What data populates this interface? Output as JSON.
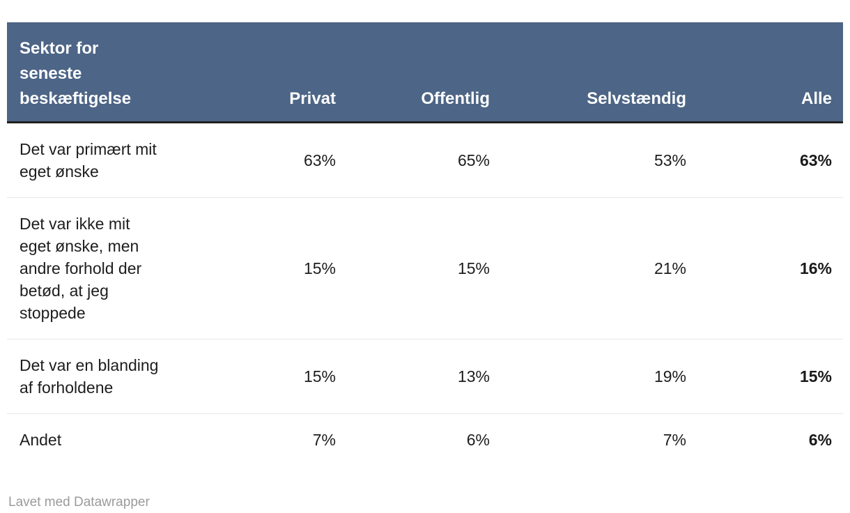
{
  "chart_data": {
    "type": "table",
    "title": "Sektor for seneste beskæftigelse",
    "columns": [
      "Sektor for seneste beskæftigelse",
      "Privat",
      "Offentlig",
      "Selvstændig",
      "Alle"
    ],
    "rows": [
      [
        "Det var primært mit eget ønske",
        63,
        65,
        53,
        63
      ],
      [
        "Det var ikke mit eget ønske, men andre forhold der betød, at jeg stoppede",
        15,
        15,
        21,
        16
      ],
      [
        "Det var en blanding af forholdene",
        15,
        13,
        19,
        15
      ],
      [
        "Andet",
        7,
        6,
        7,
        6
      ]
    ],
    "unit": "%",
    "layout_hints": "values right-aligned; last column (Alle) bold; header white-on-slate-blue",
    "attribution": "Lavet med Datawrapper"
  },
  "table": {
    "header": {
      "label_column": "Sektor for seneste beskæftigelse",
      "columns": [
        "Privat",
        "Offentlig",
        "Selvstændig",
        "Alle"
      ]
    },
    "rows": [
      {
        "label": "Det var primært mit eget ønske",
        "values": [
          "63%",
          "65%",
          "53%",
          "63%"
        ]
      },
      {
        "label": "Det var ikke mit eget ønske, men andre forhold der betød, at jeg stoppede",
        "values": [
          "15%",
          "15%",
          "21%",
          "16%"
        ]
      },
      {
        "label": "Det var en blanding af forholdene",
        "values": [
          "15%",
          "13%",
          "19%",
          "15%"
        ]
      },
      {
        "label": "Andet",
        "values": [
          "7%",
          "6%",
          "7%",
          "6%"
        ]
      }
    ]
  },
  "footer": {
    "attribution": "Lavet med Datawrapper"
  },
  "colors": {
    "header_bg": "#4d6586",
    "header_text": "#ffffff",
    "header_bottom_border": "#212121",
    "row_divider": "#e8e8e8",
    "body_text": "#1d1d1d",
    "attribution_text": "#9b9b9b",
    "page_bg": "#ffffff"
  }
}
